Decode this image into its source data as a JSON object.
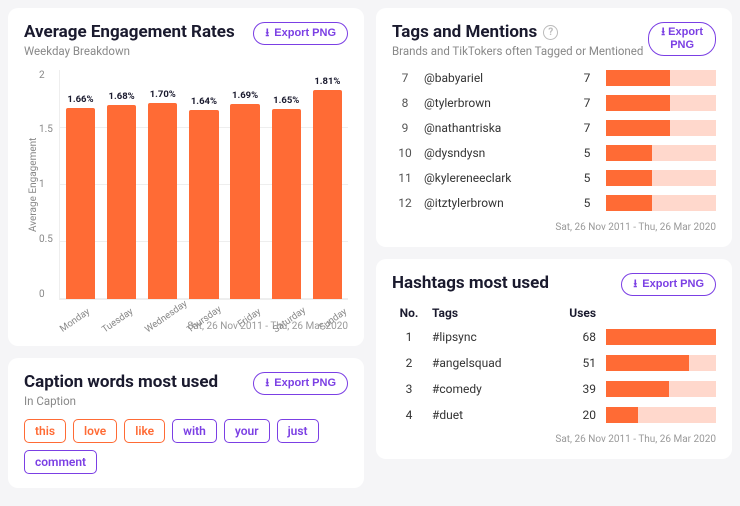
{
  "colors": {
    "accent_orange": "#ff6b35",
    "accent_orange_light": "#ffd8cc",
    "accent_purple": "#7b3fe4",
    "text_primary": "#1a1a2e",
    "text_muted": "#888888",
    "card_bg": "#ffffff",
    "page_bg": "#f5f5f7",
    "grid_line": "#eeeeee"
  },
  "date_range": "Sat, 26 Nov 2011 - Thu, 26 Mar 2020",
  "export_label": "Export PNG",
  "engagement": {
    "title": "Average Engagement Rates",
    "subtitle": "Weekday Breakdown",
    "type": "bar",
    "y_axis_label": "Average Engagement",
    "ylim": [
      0,
      2
    ],
    "ytick_step": 0.5,
    "yticks": [
      "2",
      "1.5",
      "1",
      "0.5",
      "0"
    ],
    "bar_color": "#ff6b35",
    "label_fontsize": 9.5,
    "categories": [
      "Monday",
      "Tuesday",
      "Wednesday",
      "Thursday",
      "Friday",
      "Saturday",
      "Sunday"
    ],
    "values": [
      1.66,
      1.68,
      1.7,
      1.64,
      1.69,
      1.65,
      1.81
    ],
    "value_labels": [
      "1.66%",
      "1.68%",
      "1.70%",
      "1.64%",
      "1.69%",
      "1.65%",
      "1.81%"
    ]
  },
  "tags": {
    "title": "Tags and Mentions",
    "subtitle": "Brands and TikTokers often Tagged or Mentioned",
    "bar_color": "#ff6b35",
    "bar_track_color": "#ffd8cc",
    "max_value": 12,
    "rows": [
      {
        "rank": 7,
        "handle": "@babyariel",
        "count": 7
      },
      {
        "rank": 8,
        "handle": "@tylerbrown",
        "count": 7
      },
      {
        "rank": 9,
        "handle": "@nathantriska",
        "count": 7
      },
      {
        "rank": 10,
        "handle": "@dysndysn",
        "count": 5
      },
      {
        "rank": 11,
        "handle": "@kylereneeclark",
        "count": 5
      },
      {
        "rank": 12,
        "handle": "@itztylerbrown",
        "count": 5
      }
    ]
  },
  "hashtags": {
    "title": "Hashtags most used",
    "columns": {
      "no": "No.",
      "tags": "Tags",
      "uses": "Uses"
    },
    "bar_color": "#ff6b35",
    "bar_track_color": "#ffd8cc",
    "max_value": 68,
    "rows": [
      {
        "rank": 1,
        "tag": "#lipsync",
        "uses": 68
      },
      {
        "rank": 2,
        "tag": "#angelsquad",
        "uses": 51
      },
      {
        "rank": 3,
        "tag": "#comedy",
        "uses": 39
      },
      {
        "rank": 4,
        "tag": "#duet",
        "uses": 20
      }
    ]
  },
  "caption": {
    "title": "Caption words most used",
    "subtitle": "In Caption",
    "pill_colors": {
      "orange": "#ff6b35",
      "purple": "#7b3fe4"
    },
    "words": [
      {
        "text": "this",
        "color": "orange"
      },
      {
        "text": "love",
        "color": "orange"
      },
      {
        "text": "like",
        "color": "orange"
      },
      {
        "text": "with",
        "color": "purple"
      },
      {
        "text": "your",
        "color": "purple"
      },
      {
        "text": "just",
        "color": "purple"
      },
      {
        "text": "comment",
        "color": "purple"
      }
    ]
  }
}
